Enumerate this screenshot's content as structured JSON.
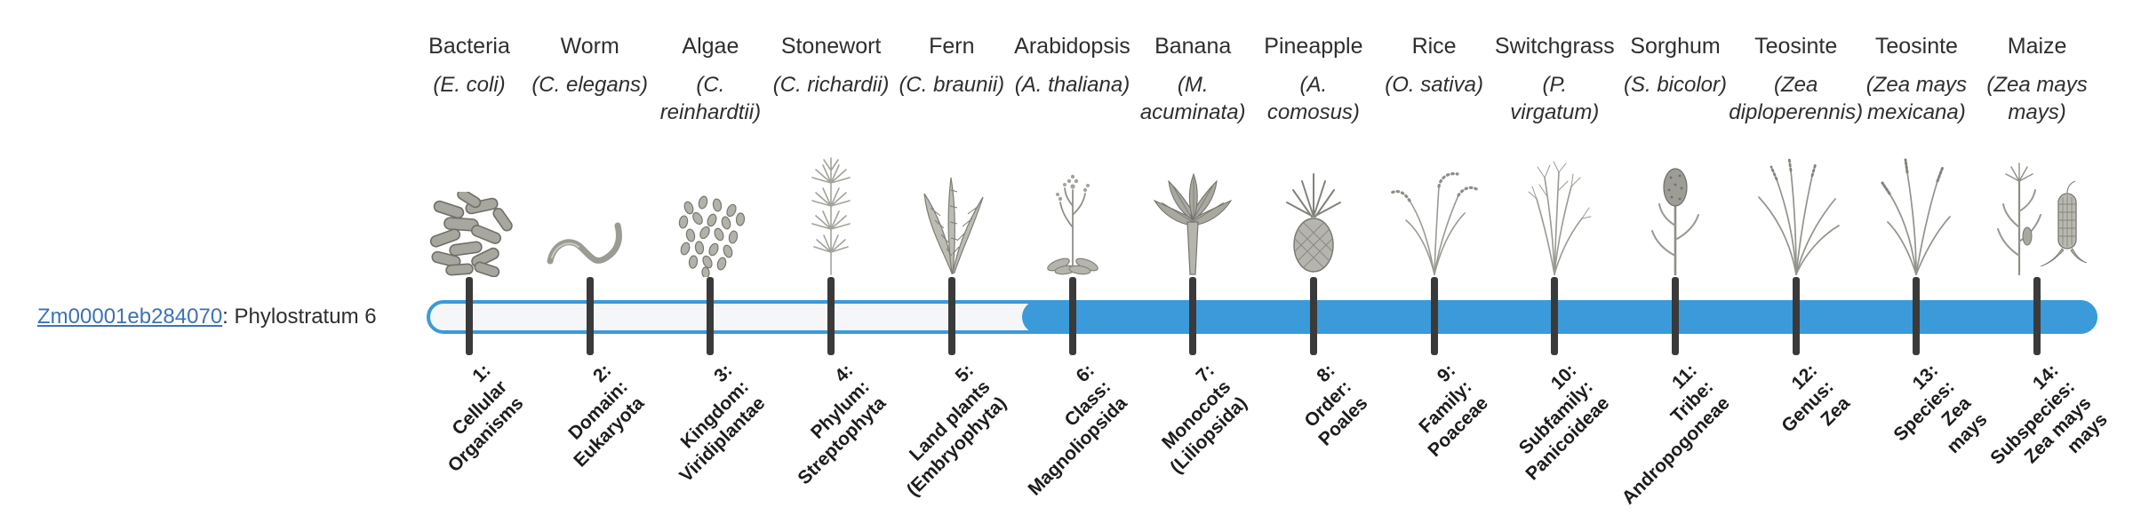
{
  "gene": {
    "id": "Zm00001eb284070",
    "suffix": ": Phylostratum 6",
    "phylostratum": 6
  },
  "timeline": {
    "total_strata": 14,
    "filled_from_stratum": 6,
    "filled_to_stratum": 14
  },
  "colors": {
    "bar_blue": "#3b9ad9",
    "track_fill": "#f4f6f8",
    "tick": "#3a3a3a",
    "link_blue": "#3d72b4",
    "heading_text": "#2e2e2e",
    "stratum_text": "#1c1c1c"
  },
  "species": [
    {
      "name": "Bacteria",
      "sci_lines": [
        "(E. coli)"
      ],
      "icon": "bacteria-icon",
      "stratum_lines": [
        "1:",
        "Cellular",
        "Organisms"
      ]
    },
    {
      "name": "Worm",
      "sci_lines": [
        "(C. elegans)"
      ],
      "icon": "worm-icon",
      "stratum_lines": [
        "2:",
        "Domain:",
        "Eukaryota"
      ]
    },
    {
      "name": "Algae",
      "sci_lines": [
        "(C.",
        "reinhardtii)"
      ],
      "icon": "algae-icon",
      "stratum_lines": [
        "3:",
        "Kingdom:",
        "Viridiplantae"
      ]
    },
    {
      "name": "Stonewort",
      "sci_lines": [
        "(C. richardii)"
      ],
      "icon": "stonewort-icon",
      "stratum_lines": [
        "4:",
        "Phylum:",
        "Streptophyta"
      ]
    },
    {
      "name": "Fern",
      "sci_lines": [
        "(C. braunii)"
      ],
      "icon": "fern-icon",
      "stratum_lines": [
        "5:",
        "Land plants",
        "(Embryophyta)"
      ]
    },
    {
      "name": "Arabidopsis",
      "sci_lines": [
        "(A. thaliana)"
      ],
      "icon": "arabidopsis-icon",
      "stratum_lines": [
        "6:",
        "Class:",
        "Magnoliopsida"
      ]
    },
    {
      "name": "Banana",
      "sci_lines": [
        "(M.",
        "acuminata)"
      ],
      "icon": "banana-icon",
      "stratum_lines": [
        "7:",
        "Monocots",
        "(Liliopsida)"
      ]
    },
    {
      "name": "Pineapple",
      "sci_lines": [
        "(A.",
        "comosus)"
      ],
      "icon": "pineapple-icon",
      "stratum_lines": [
        "8:",
        "Order:",
        "Poales"
      ]
    },
    {
      "name": "Rice",
      "sci_lines": [
        "(O. sativa)"
      ],
      "icon": "rice-icon",
      "stratum_lines": [
        "9:",
        "Family:",
        "Poaceae"
      ]
    },
    {
      "name": "Switchgrass",
      "sci_lines": [
        "(P.",
        "virgatum)"
      ],
      "icon": "switchgrass-icon",
      "stratum_lines": [
        "10:",
        "Subfamily:",
        "Panicoideae"
      ]
    },
    {
      "name": "Sorghum",
      "sci_lines": [
        "(S. bicolor)"
      ],
      "icon": "sorghum-icon",
      "stratum_lines": [
        "11:",
        "Tribe:",
        "Andropogoneae"
      ]
    },
    {
      "name": "Teosinte",
      "sci_lines": [
        "(Zea",
        "diploperennis)"
      ],
      "icon": "teosinte-diploperennis-icon",
      "stratum_lines": [
        "12:",
        "Genus:",
        "Zea"
      ]
    },
    {
      "name": "Teosinte",
      "sci_lines": [
        "(Zea mays",
        "mexicana)"
      ],
      "icon": "teosinte-mexicana-icon",
      "stratum_lines": [
        "13:",
        "Species:",
        "Zea",
        "mays"
      ]
    },
    {
      "name": "Maize",
      "sci_lines": [
        "(Zea mays",
        "mays)"
      ],
      "icon": "maize-icon",
      "stratum_lines": [
        "14:",
        "Subspecies:",
        "Zea mays",
        "mays"
      ]
    }
  ]
}
